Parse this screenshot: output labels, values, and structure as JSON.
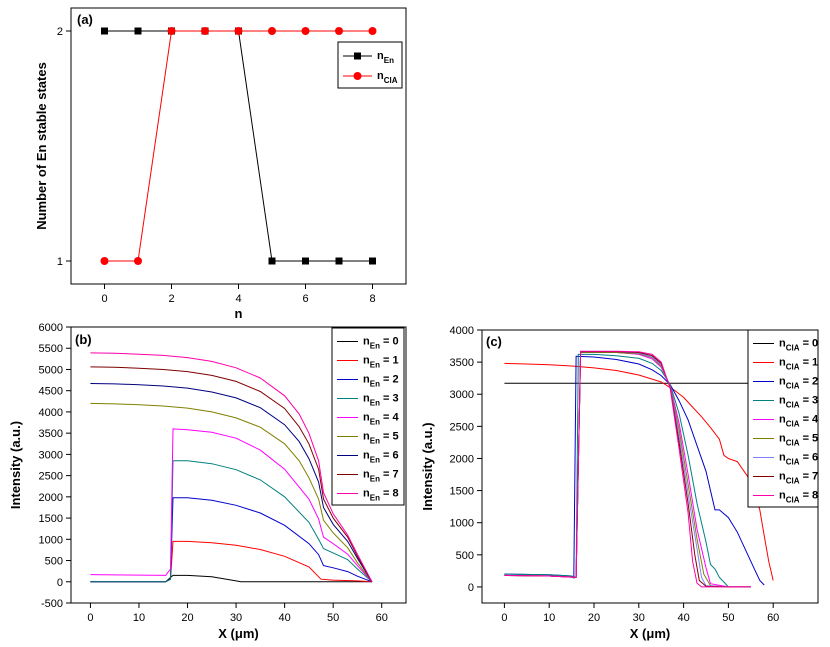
{
  "chart_data": [
    {
      "id": "a",
      "type": "line",
      "panel_label": "(a)",
      "xlabel": "n",
      "ylabel": "Number of En stable states",
      "xlim": [
        -1,
        9
      ],
      "ylim": [
        0.9,
        2.1
      ],
      "xticks": [
        0,
        2,
        4,
        6,
        8
      ],
      "yticks": [
        1,
        2
      ],
      "legend": {
        "location": "top-right"
      },
      "series": [
        {
          "name": "n",
          "sub": "En",
          "color": "#000000",
          "marker": "square",
          "x": [
            0,
            1,
            2,
            3,
            4,
            5,
            6,
            7,
            8
          ],
          "y": [
            2,
            2,
            2,
            2,
            2,
            1,
            1,
            1,
            1
          ]
        },
        {
          "name": "n",
          "sub": "ClA",
          "color": "#ff0000",
          "marker": "circle",
          "x": [
            0,
            1,
            2,
            3,
            4,
            5,
            6,
            7,
            8
          ],
          "y": [
            1,
            1,
            2,
            2,
            2,
            2,
            2,
            2,
            2
          ]
        }
      ]
    },
    {
      "id": "b",
      "type": "line",
      "panel_label": "(b)",
      "xlabel": "X (μm)",
      "ylabel": "Intensity (a.u.)",
      "xlim": [
        -4,
        65
      ],
      "ylim": [
        -500,
        6000
      ],
      "xticks": [
        0,
        10,
        20,
        30,
        40,
        50,
        60
      ],
      "yticks": [
        -500,
        0,
        500,
        1000,
        1500,
        2000,
        2500,
        3000,
        3500,
        4000,
        4500,
        5000,
        5500,
        6000
      ],
      "legend": {
        "location": "top-right"
      },
      "series": [
        {
          "name": "n",
          "sub": "En",
          "label": " = 0",
          "color": "#000000",
          "x": [
            0,
            15.5,
            16.5,
            17,
            20,
            25,
            30,
            31,
            40,
            50,
            58
          ],
          "y": [
            0,
            0,
            100,
            150,
            150,
            120,
            20,
            0,
            0,
            0,
            0
          ]
        },
        {
          "name": "n",
          "sub": "En",
          "label": " = 1",
          "color": "#ff0000",
          "x": [
            0,
            15.5,
            16.5,
            17,
            20,
            25,
            30,
            35,
            40,
            45,
            47.5,
            50,
            55,
            58
          ],
          "y": [
            0,
            0,
            60,
            950,
            950,
            920,
            860,
            760,
            600,
            350,
            60,
            40,
            20,
            0
          ]
        },
        {
          "name": "n",
          "sub": "En",
          "label": " = 2",
          "color": "#0000cc",
          "x": [
            0,
            15.5,
            16.5,
            17,
            20,
            25,
            30,
            35,
            40,
            45,
            47,
            48,
            50,
            53,
            55,
            58
          ],
          "y": [
            0,
            0,
            60,
            1980,
            1980,
            1920,
            1800,
            1620,
            1330,
            900,
            640,
            380,
            330,
            240,
            130,
            0
          ]
        },
        {
          "name": "n",
          "sub": "En",
          "label": " = 3",
          "color": "#008080",
          "x": [
            0,
            15.5,
            16.5,
            17,
            20,
            25,
            30,
            35,
            40,
            45,
            47,
            48,
            50,
            53,
            55,
            58
          ],
          "y": [
            0,
            0,
            60,
            2850,
            2850,
            2780,
            2640,
            2400,
            2000,
            1400,
            1000,
            780,
            680,
            520,
            300,
            0
          ]
        },
        {
          "name": "n",
          "sub": "En",
          "label": " = 4",
          "color": "#ff00ff",
          "x": [
            0,
            15.5,
            16.5,
            17,
            20,
            25,
            30,
            35,
            40,
            45,
            47,
            48,
            50,
            53,
            55,
            58
          ],
          "y": [
            170,
            150,
            300,
            3600,
            3580,
            3520,
            3380,
            3100,
            2650,
            1950,
            1480,
            1050,
            900,
            650,
            380,
            0
          ]
        },
        {
          "name": "n",
          "sub": "En",
          "label": " = 5",
          "color": "#808000",
          "x": [
            0,
            5,
            10,
            15,
            20,
            25,
            30,
            35,
            40,
            43,
            45,
            47,
            48,
            50,
            53,
            55,
            58
          ],
          "y": [
            4200,
            4190,
            4170,
            4140,
            4090,
            4000,
            3860,
            3640,
            3250,
            2850,
            2450,
            1950,
            1450,
            1150,
            800,
            450,
            0
          ]
        },
        {
          "name": "n",
          "sub": "En",
          "label": " = 6",
          "color": "#000080",
          "x": [
            0,
            5,
            10,
            15,
            20,
            25,
            30,
            35,
            40,
            43,
            45,
            47,
            48,
            50,
            53,
            55,
            58
          ],
          "y": [
            4670,
            4660,
            4640,
            4610,
            4560,
            4470,
            4330,
            4100,
            3700,
            3300,
            2900,
            2350,
            1750,
            1350,
            950,
            550,
            0
          ]
        },
        {
          "name": "n",
          "sub": "En",
          "label": " = 7",
          "color": "#800000",
          "x": [
            0,
            5,
            10,
            15,
            20,
            25,
            30,
            35,
            40,
            43,
            45,
            47,
            48,
            50,
            53,
            55,
            58
          ],
          "y": [
            5060,
            5050,
            5030,
            5000,
            4950,
            4860,
            4720,
            4480,
            4080,
            3650,
            3250,
            2650,
            1950,
            1500,
            1050,
            600,
            0
          ]
        },
        {
          "name": "n",
          "sub": "En",
          "label": " = 8",
          "color": "#ff00aa",
          "x": [
            0,
            5,
            10,
            15,
            20,
            25,
            30,
            35,
            40,
            43,
            45,
            47,
            48,
            50,
            53,
            55,
            58
          ],
          "y": [
            5390,
            5380,
            5360,
            5330,
            5280,
            5190,
            5040,
            4800,
            4380,
            3950,
            3500,
            2850,
            2100,
            1600,
            1100,
            650,
            0
          ]
        }
      ]
    },
    {
      "id": "c",
      "type": "line",
      "panel_label": "(c)",
      "xlabel": "X (μm)",
      "ylabel": "Intensity (a.u.)",
      "xlim": [
        -5,
        70
      ],
      "ylim": [
        -250,
        4000
      ],
      "xticks": [
        0,
        10,
        20,
        30,
        40,
        50,
        60
      ],
      "yticks": [
        0,
        500,
        1000,
        1500,
        2000,
        2500,
        3000,
        3500,
        4000
      ],
      "legend": {
        "location": "top-right"
      },
      "series": [
        {
          "name": "n",
          "sub": "ClA",
          "label": " = 0",
          "color": "#000000",
          "x": [
            0,
            20,
            40,
            60,
            64
          ],
          "y": [
            3170,
            3170,
            3170,
            3170,
            3170
          ]
        },
        {
          "name": "n",
          "sub": "ClA",
          "label": " = 1",
          "color": "#ff0000",
          "x": [
            0,
            5,
            10,
            15,
            20,
            25,
            30,
            35,
            38,
            40,
            42,
            44,
            46,
            48,
            49,
            50,
            52,
            55,
            57,
            58,
            59,
            60
          ],
          "y": [
            3480,
            3470,
            3460,
            3440,
            3410,
            3370,
            3300,
            3190,
            3060,
            2950,
            2800,
            2650,
            2480,
            2300,
            2050,
            2000,
            1950,
            1650,
            1200,
            800,
            400,
            100
          ]
        },
        {
          "name": "n",
          "sub": "ClA",
          "label": " = 2",
          "color": "#0000cc",
          "x": [
            0,
            10,
            15,
            15.5,
            16,
            20,
            25,
            30,
            33,
            35,
            37,
            39,
            41,
            43,
            45,
            46,
            47,
            48,
            50,
            52,
            54,
            56,
            57,
            58
          ],
          "y": [
            200,
            190,
            170,
            140,
            3590,
            3580,
            3540,
            3470,
            3380,
            3290,
            3150,
            2900,
            2600,
            2200,
            1800,
            1500,
            1200,
            1200,
            1080,
            850,
            550,
            250,
            100,
            30
          ]
        },
        {
          "name": "n",
          "sub": "ClA",
          "label": " = 3",
          "color": "#008080",
          "x": [
            0,
            10,
            15,
            16,
            16.5,
            20,
            25,
            30,
            33,
            35,
            37,
            39,
            41,
            43,
            45,
            46,
            47,
            48,
            50
          ],
          "y": [
            200,
            190,
            170,
            150,
            3620,
            3620,
            3600,
            3560,
            3480,
            3370,
            3150,
            2700,
            2050,
            1300,
            700,
            350,
            280,
            150,
            0
          ]
        },
        {
          "name": "n",
          "sub": "ClA",
          "label": " = 4",
          "color": "#ff00ff",
          "x": [
            0,
            10,
            16,
            17,
            20,
            25,
            30,
            33,
            35,
            37,
            39,
            41,
            43,
            45,
            46,
            50,
            55
          ],
          "y": [
            180,
            170,
            150,
            3650,
            3650,
            3650,
            3620,
            3550,
            3420,
            3130,
            2550,
            1750,
            900,
            300,
            50,
            0,
            0
          ]
        },
        {
          "name": "n",
          "sub": "ClA",
          "label": " = 5",
          "color": "#808000",
          "x": [
            0,
            10,
            16,
            17,
            20,
            25,
            30,
            33,
            35,
            37,
            39,
            41,
            43,
            44.5,
            46,
            50,
            55
          ],
          "y": [
            180,
            170,
            150,
            3650,
            3650,
            3650,
            3630,
            3570,
            3440,
            3120,
            2450,
            1600,
            750,
            200,
            20,
            0,
            0
          ]
        },
        {
          "name": "n",
          "sub": "ClA",
          "label": " = 6",
          "color": "#8080ff",
          "x": [
            0,
            10,
            16,
            17,
            20,
            25,
            30,
            33,
            35,
            37,
            39,
            41,
            43,
            44,
            45,
            50,
            55
          ],
          "y": [
            180,
            170,
            150,
            3660,
            3660,
            3660,
            3640,
            3580,
            3460,
            3110,
            2350,
            1450,
            600,
            150,
            20,
            0,
            0
          ]
        },
        {
          "name": "n",
          "sub": "ClA",
          "label": " = 7",
          "color": "#800000",
          "x": [
            0,
            10,
            16,
            17,
            20,
            25,
            30,
            33,
            35,
            37,
            39,
            41,
            42.5,
            43.5,
            45,
            50,
            55
          ],
          "y": [
            180,
            170,
            150,
            3660,
            3660,
            3660,
            3650,
            3600,
            3480,
            3100,
            2250,
            1300,
            500,
            100,
            10,
            0,
            0
          ]
        },
        {
          "name": "n",
          "sub": "ClA",
          "label": " = 8",
          "color": "#ff00aa",
          "x": [
            0,
            10,
            16,
            17,
            20,
            25,
            30,
            33,
            35,
            37,
            39,
            41,
            42,
            43,
            44,
            50,
            55
          ],
          "y": [
            180,
            170,
            150,
            3670,
            3670,
            3670,
            3660,
            3620,
            3500,
            3090,
            2150,
            1150,
            400,
            60,
            0,
            0,
            0
          ]
        }
      ]
    }
  ]
}
